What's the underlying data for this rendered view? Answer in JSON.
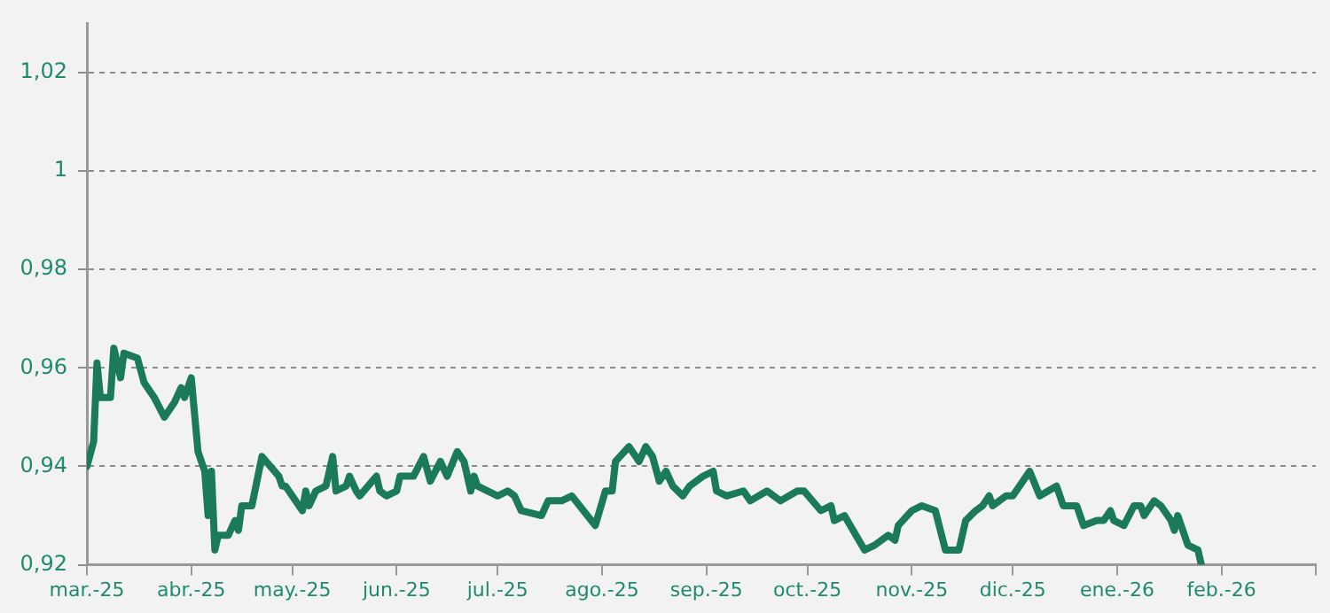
{
  "chart_data": {
    "type": "line",
    "x": [
      "2025-03-01",
      "2025-03-03",
      "2025-03-04",
      "2025-03-05",
      "2025-03-08",
      "2025-03-09",
      "2025-03-11",
      "2025-03-12",
      "2025-03-16",
      "2025-03-18",
      "2025-03-21",
      "2025-03-24",
      "2025-03-27",
      "2025-03-29",
      "2025-03-30",
      "2025-04-01",
      "2025-04-03",
      "2025-04-05",
      "2025-04-06",
      "2025-04-07",
      "2025-04-08",
      "2025-04-09",
      "2025-04-12",
      "2025-04-14",
      "2025-04-15",
      "2025-04-16",
      "2025-04-19",
      "2025-04-22",
      "2025-04-27",
      "2025-04-28",
      "2025-04-29",
      "2025-05-04",
      "2025-05-05",
      "2025-05-06",
      "2025-05-08",
      "2025-05-11",
      "2025-05-13",
      "2025-05-14",
      "2025-05-17",
      "2025-05-18",
      "2025-05-20",
      "2025-05-21",
      "2025-05-26",
      "2025-05-27",
      "2025-05-29",
      "2025-06-01",
      "2025-06-02",
      "2025-06-06",
      "2025-06-09",
      "2025-06-11",
      "2025-06-14",
      "2025-06-16",
      "2025-06-19",
      "2025-06-21",
      "2025-06-23",
      "2025-06-24",
      "2025-06-25",
      "2025-07-01",
      "2025-07-04",
      "2025-07-06",
      "2025-07-08",
      "2025-07-14",
      "2025-07-16",
      "2025-07-20",
      "2025-07-23",
      "2025-07-30",
      "2025-08-02",
      "2025-08-04",
      "2025-08-05",
      "2025-08-09",
      "2025-08-11",
      "2025-08-12",
      "2025-08-14",
      "2025-08-16",
      "2025-08-18",
      "2025-08-20",
      "2025-08-22",
      "2025-08-25",
      "2025-08-27",
      "2025-08-31",
      "2025-09-03",
      "2025-09-04",
      "2025-09-07",
      "2025-09-12",
      "2025-09-14",
      "2025-09-19",
      "2025-09-23",
      "2025-09-28",
      "2025-09-30",
      "2025-10-05",
      "2025-10-08",
      "2025-10-09",
      "2025-10-12",
      "2025-10-18",
      "2025-10-21",
      "2025-10-25",
      "2025-10-27",
      "2025-10-28",
      "2025-11-01",
      "2025-11-04",
      "2025-11-08",
      "2025-11-11",
      "2025-11-15",
      "2025-11-17",
      "2025-11-20",
      "2025-11-22",
      "2025-11-24",
      "2025-11-25",
      "2025-11-29",
      "2025-12-01",
      "2025-12-03",
      "2025-12-06",
      "2025-12-09",
      "2025-12-14",
      "2025-12-16",
      "2025-12-20",
      "2025-12-22",
      "2025-12-26",
      "2025-12-28",
      "2025-12-30",
      "2025-12-31",
      "2026-01-03",
      "2026-01-06",
      "2026-01-08",
      "2026-01-09",
      "2026-01-12",
      "2026-01-14",
      "2026-01-17",
      "2026-01-18",
      "2026-01-19",
      "2026-01-22",
      "2026-01-25",
      "2026-01-26"
    ],
    "series": [
      {
        "color": "#1a7a5a",
        "values": [
          0.94,
          0.945,
          0.961,
          0.954,
          0.954,
          0.964,
          0.958,
          0.963,
          0.962,
          0.957,
          0.954,
          0.95,
          0.953,
          0.956,
          0.954,
          0.958,
          0.943,
          0.939,
          0.93,
          0.939,
          0.923,
          0.926,
          0.926,
          0.929,
          0.927,
          0.932,
          0.932,
          0.942,
          0.938,
          0.936,
          0.936,
          0.931,
          0.935,
          0.932,
          0.935,
          0.936,
          0.942,
          0.935,
          0.936,
          0.938,
          0.935,
          0.934,
          0.938,
          0.935,
          0.934,
          0.935,
          0.938,
          0.938,
          0.942,
          0.937,
          0.941,
          0.938,
          0.943,
          0.941,
          0.935,
          0.938,
          0.936,
          0.934,
          0.935,
          0.934,
          0.931,
          0.93,
          0.933,
          0.933,
          0.934,
          0.928,
          0.935,
          0.935,
          0.941,
          0.944,
          0.942,
          0.941,
          0.944,
          0.942,
          0.937,
          0.939,
          0.936,
          0.934,
          0.936,
          0.938,
          0.939,
          0.935,
          0.934,
          0.935,
          0.933,
          0.935,
          0.933,
          0.935,
          0.935,
          0.931,
          0.932,
          0.929,
          0.93,
          0.923,
          0.924,
          0.926,
          0.925,
          0.928,
          0.931,
          0.932,
          0.931,
          0.923,
          0.923,
          0.929,
          0.931,
          0.932,
          0.934,
          0.932,
          0.934,
          0.934,
          0.936,
          0.939,
          0.934,
          0.936,
          0.932,
          0.932,
          0.928,
          0.929,
          0.929,
          0.931,
          0.929,
          0.928,
          0.932,
          0.932,
          0.93,
          0.933,
          0.932,
          0.929,
          0.927,
          0.93,
          0.924,
          0.923,
          0.92
        ]
      }
    ],
    "xlim": [
      "2025-03-01",
      "2026-03-01"
    ],
    "xticks": [
      {
        "value": "2025-03-01",
        "label": "mar.-25"
      },
      {
        "value": "2025-04-01",
        "label": "abr.-25"
      },
      {
        "value": "2025-05-01",
        "label": "may.-25"
      },
      {
        "value": "2025-06-01",
        "label": "jun.-25"
      },
      {
        "value": "2025-07-01",
        "label": "jul.-25"
      },
      {
        "value": "2025-08-01",
        "label": "ago.-25"
      },
      {
        "value": "2025-09-01",
        "label": "sep.-25"
      },
      {
        "value": "2025-10-01",
        "label": "oct.-25"
      },
      {
        "value": "2025-11-01",
        "label": "nov.-25"
      },
      {
        "value": "2025-12-01",
        "label": "dic.-25"
      },
      {
        "value": "2026-01-01",
        "label": "ene.-26"
      },
      {
        "value": "2026-02-01",
        "label": "feb.-26"
      },
      {
        "value": "2026-03-01",
        "label": null
      }
    ],
    "ylim": [
      0.92,
      1.03
    ],
    "yticks": [
      {
        "value": 0.92,
        "label": "0,92"
      },
      {
        "value": 0.94,
        "label": "0,94"
      },
      {
        "value": 0.96,
        "label": "0,96"
      },
      {
        "value": 0.98,
        "label": "0,98"
      },
      1,
      {
        "value": 1.02,
        "label": "1,02"
      }
    ],
    "grid": "y",
    "marker": "none",
    "line_style": "solid",
    "legend": false
  }
}
